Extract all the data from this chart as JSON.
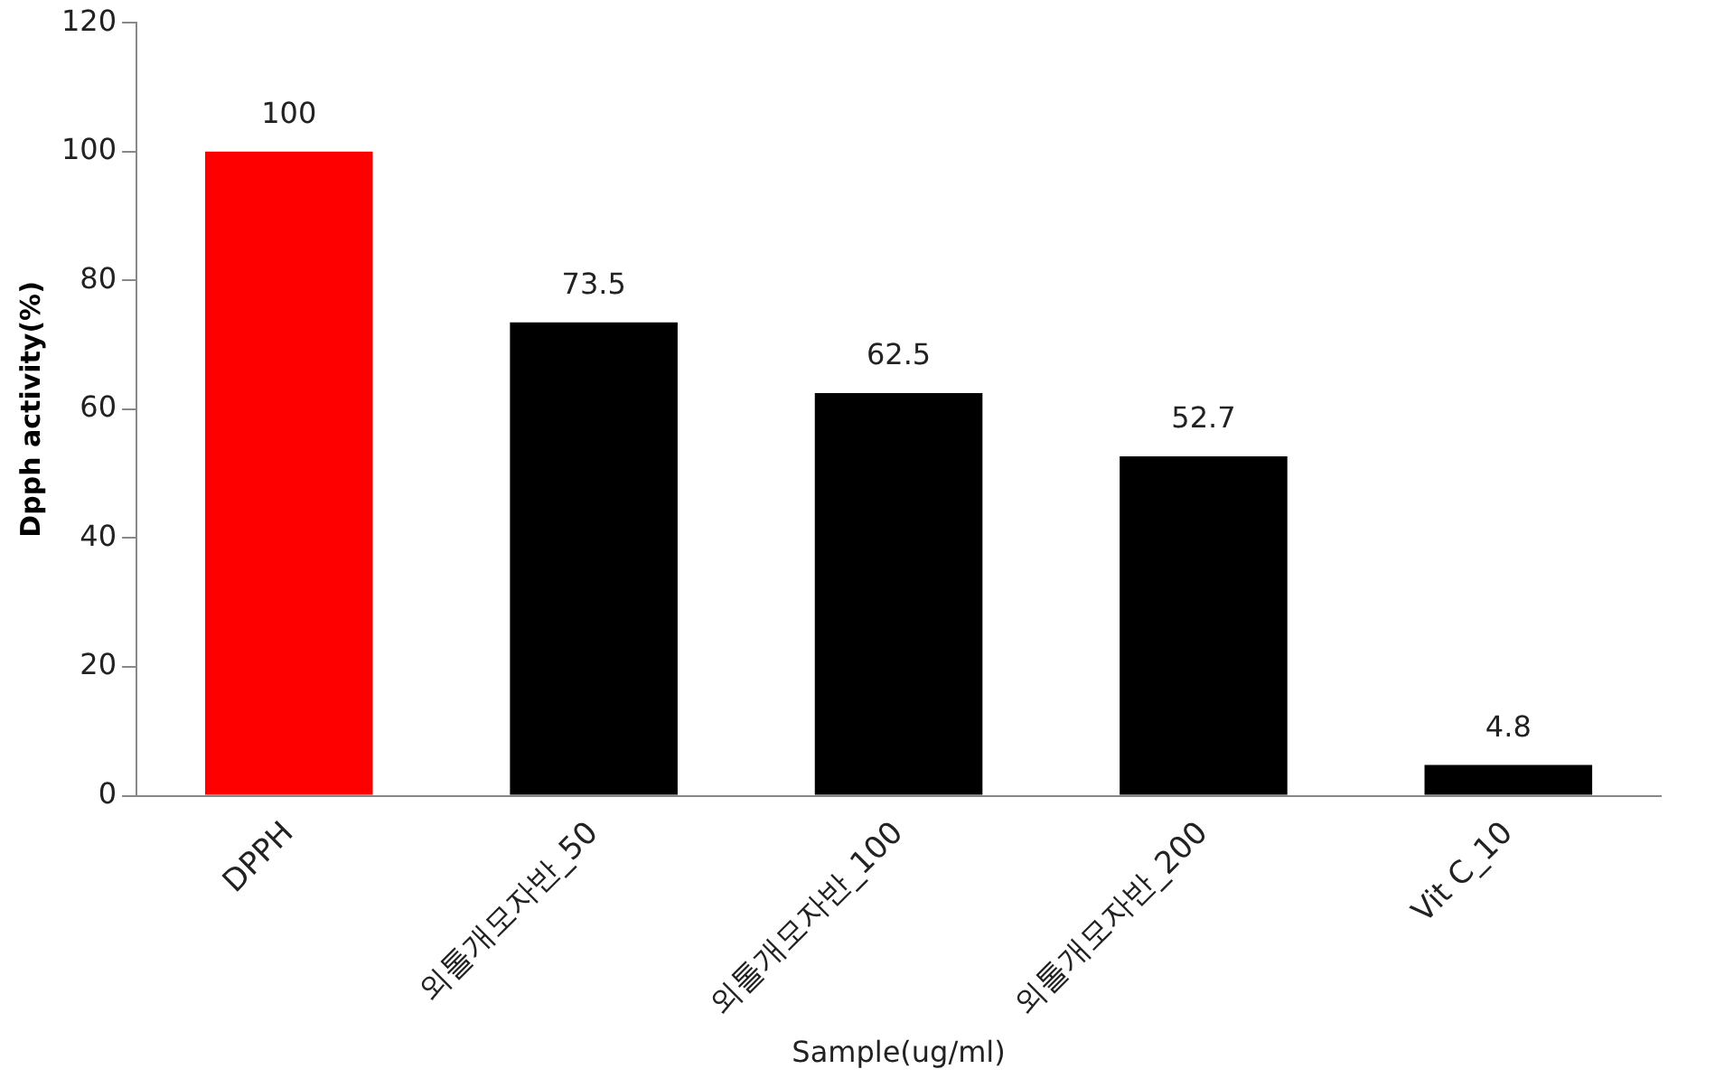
{
  "chart_data": {
    "type": "bar",
    "xlabel": "Sample(ug/ml)",
    "ylabel": "Dpph activity(%)",
    "categories": [
      "DPPH",
      "외톨개모자반_50",
      "외톨개모자반_100",
      "외톨개모자반_200",
      "Vit C_10"
    ],
    "values": [
      100,
      73.5,
      62.5,
      52.7,
      4.8
    ],
    "colors": [
      "#ff0000",
      "#000000",
      "#000000",
      "#000000",
      "#000000"
    ],
    "ylim": [
      0,
      120
    ],
    "yticks": [
      0,
      20,
      40,
      60,
      80,
      100,
      120
    ],
    "data_labels": true,
    "grid": false,
    "legend": false
  }
}
